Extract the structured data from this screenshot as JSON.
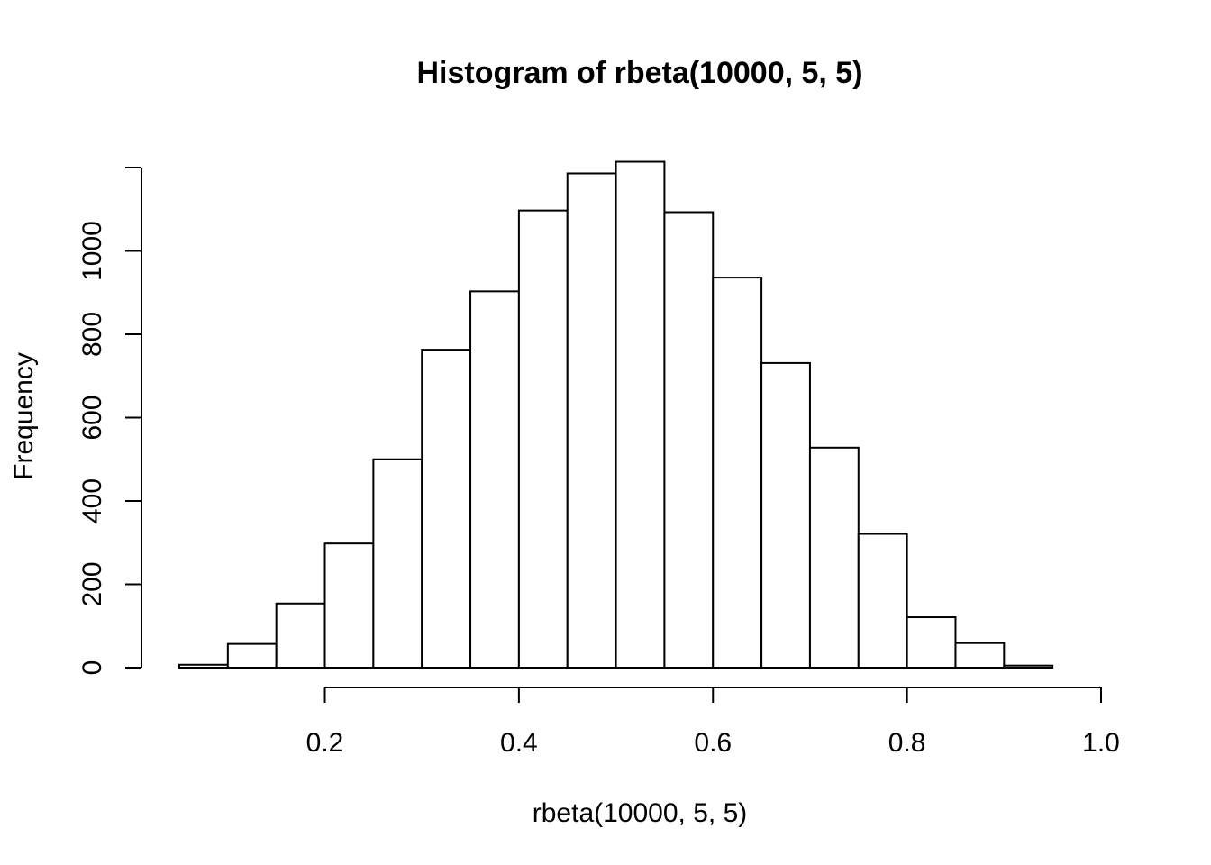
{
  "chart_data": {
    "type": "bar",
    "title": "Histogram of rbeta(10000, 5, 5)",
    "xlabel": "rbeta(10000, 5, 5)",
    "ylabel": "Frequency",
    "bin_edges": [
      0.05,
      0.1,
      0.15,
      0.2,
      0.25,
      0.3,
      0.35,
      0.4,
      0.45,
      0.5,
      0.55,
      0.6,
      0.65,
      0.7,
      0.75,
      0.8,
      0.85,
      0.9,
      0.95
    ],
    "values": [
      7,
      57,
      154,
      298,
      500,
      763,
      903,
      1097,
      1186,
      1214,
      1093,
      936,
      731,
      528,
      321,
      121,
      59,
      5
    ],
    "xlim": [
      0.05,
      1.0
    ],
    "ylim": [
      0,
      1200
    ],
    "x_ticks": [
      "0.2",
      "0.4",
      "0.6",
      "0.8",
      "1.0"
    ],
    "y_ticks": [
      "0",
      "200",
      "400",
      "600",
      "800",
      "1000"
    ],
    "grid": false,
    "legend": "none"
  }
}
